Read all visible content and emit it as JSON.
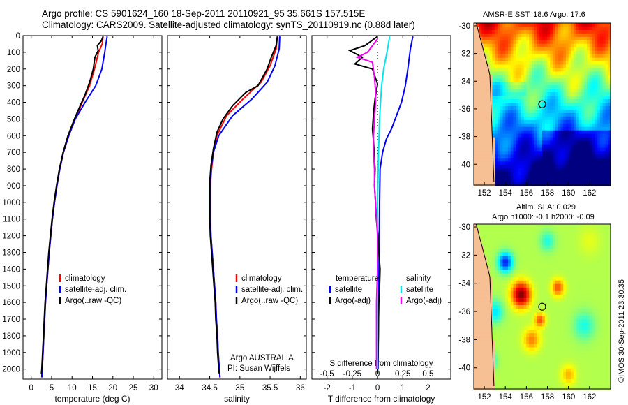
{
  "header": {
    "line1": "Argo profile: CS 5901624_160 18-Sep-2011 20110921_95 35.661S 157.515E",
    "line2": "Climatology: CARS2009. Satellite-adjusted climatology: synTS_20110919.nc (0.88d later)"
  },
  "colors": {
    "climatology": "#ff0000",
    "satellite": "#0000ff",
    "argo": "#000000",
    "salinity_sat": "#00e5ee",
    "salinity_argo": "#ee00ee",
    "land": "#f7bf94"
  },
  "chart_data": [
    {
      "type": "line",
      "xlabel": "temperature (deg C)",
      "xticks": [
        "0",
        "5",
        "10",
        "15",
        "20",
        "25",
        "30"
      ],
      "xlim": [
        -2,
        32
      ],
      "ylim": [
        0,
        2060
      ],
      "yticks": [
        "0",
        "100",
        "200",
        "300",
        "400",
        "500",
        "600",
        "700",
        "800",
        "900",
        "1000",
        "1100",
        "1200",
        "1300",
        "1400",
        "1500",
        "1600",
        "1700",
        "1800",
        "1900",
        "2000"
      ],
      "legend": [
        "climatology",
        "satellite-adj. clim.",
        "Argo(..raw -QC)"
      ],
      "series": [
        {
          "name": "climatology",
          "color": "#ff0000",
          "points": [
            [
              17.6,
              5
            ],
            [
              17.4,
              50
            ],
            [
              16.5,
              100
            ],
            [
              15.5,
              200
            ],
            [
              14.3,
              300
            ],
            [
              12.5,
              400
            ],
            [
              10.8,
              500
            ],
            [
              9.2,
              600
            ],
            [
              7.9,
              700
            ],
            [
              7,
              800
            ],
            [
              6.3,
              900
            ],
            [
              5.7,
              1000
            ],
            [
              5.2,
              1100
            ],
            [
              4.8,
              1200
            ],
            [
              4.4,
              1300
            ],
            [
              4.1,
              1400
            ],
            [
              3.8,
              1500
            ],
            [
              3.5,
              1600
            ],
            [
              3.3,
              1700
            ],
            [
              3.1,
              1800
            ],
            [
              2.9,
              1900
            ],
            [
              2.7,
              2000
            ],
            [
              2.6,
              2050
            ]
          ]
        },
        {
          "name": "satellite-adj. clim.",
          "color": "#0000ff",
          "points": [
            [
              18.6,
              5
            ],
            [
              18.3,
              50
            ],
            [
              18,
              100
            ],
            [
              17.3,
              200
            ],
            [
              15.8,
              300
            ],
            [
              13.2,
              400
            ],
            [
              10.8,
              500
            ],
            [
              9.2,
              600
            ],
            [
              7.9,
              700
            ],
            [
              7,
              800
            ],
            [
              6.3,
              900
            ],
            [
              5.7,
              1000
            ],
            [
              5.2,
              1100
            ],
            [
              4.8,
              1200
            ],
            [
              4.4,
              1300
            ],
            [
              4.1,
              1400
            ],
            [
              3.8,
              1500
            ],
            [
              3.5,
              1600
            ],
            [
              3.3,
              1700
            ],
            [
              3.1,
              1800
            ],
            [
              2.9,
              1900
            ],
            [
              2.7,
              2000
            ],
            [
              2.6,
              2050
            ]
          ]
        },
        {
          "name": "Argo(..raw -QC)",
          "color": "#000000",
          "points": [
            [
              17.6,
              5
            ],
            [
              17.2,
              30
            ],
            [
              16.2,
              60
            ],
            [
              16.4,
              90
            ],
            [
              15.6,
              130
            ],
            [
              15.2,
              200
            ],
            [
              14.3,
              280
            ],
            [
              13.1,
              360
            ],
            [
              12,
              420
            ],
            [
              10.6,
              500
            ],
            [
              9,
              600
            ],
            [
              7.8,
              700
            ],
            [
              6.9,
              800
            ],
            [
              6.2,
              900
            ],
            [
              5.6,
              1000
            ],
            [
              5.1,
              1100
            ],
            [
              4.7,
              1200
            ],
            [
              4.3,
              1300
            ],
            [
              4,
              1400
            ],
            [
              3.7,
              1500
            ],
            [
              3.4,
              1600
            ],
            [
              3.2,
              1700
            ],
            [
              3,
              1800
            ],
            [
              2.8,
              1900
            ],
            [
              2.6,
              2000
            ],
            [
              2.5,
              2030
            ]
          ]
        }
      ]
    },
    {
      "type": "line",
      "xlabel": "salinity",
      "xticks": [
        "34",
        "34.5",
        "35",
        "35.5",
        "36"
      ],
      "xlim": [
        33.8,
        36.1
      ],
      "ylim": [
        0,
        2060
      ],
      "legend": [
        "climatology",
        "satellite-adj. clim.",
        "Argo(..raw -QC)"
      ],
      "annotations": [
        "Argo AUSTRALIA",
        "PI: Susan Wijffels"
      ],
      "series": [
        {
          "name": "climatology",
          "color": "#ff0000",
          "points": [
            [
              35.62,
              5
            ],
            [
              35.6,
              80
            ],
            [
              35.5,
              180
            ],
            [
              35.35,
              280
            ],
            [
              35.05,
              380
            ],
            [
              34.78,
              480
            ],
            [
              34.62,
              600
            ],
            [
              34.56,
              700
            ],
            [
              34.53,
              800
            ],
            [
              34.51,
              900
            ],
            [
              34.51,
              1000
            ],
            [
              34.51,
              1100
            ],
            [
              34.52,
              1200
            ],
            [
              34.54,
              1300
            ],
            [
              34.56,
              1400
            ],
            [
              34.58,
              1500
            ],
            [
              34.6,
              1600
            ],
            [
              34.61,
              1700
            ],
            [
              34.63,
              1800
            ],
            [
              34.64,
              1900
            ],
            [
              34.66,
              2000
            ],
            [
              34.67,
              2050
            ]
          ]
        },
        {
          "name": "satellite-adj. clim.",
          "color": "#0000ff",
          "points": [
            [
              35.66,
              5
            ],
            [
              35.65,
              80
            ],
            [
              35.58,
              180
            ],
            [
              35.45,
              280
            ],
            [
              35.2,
              380
            ],
            [
              34.88,
              480
            ],
            [
              34.65,
              600
            ],
            [
              34.56,
              700
            ],
            [
              34.52,
              800
            ],
            [
              34.51,
              900
            ],
            [
              34.51,
              1000
            ],
            [
              34.51,
              1100
            ],
            [
              34.52,
              1200
            ],
            [
              34.54,
              1300
            ],
            [
              34.56,
              1400
            ],
            [
              34.58,
              1500
            ],
            [
              34.6,
              1600
            ],
            [
              34.61,
              1700
            ],
            [
              34.63,
              1800
            ],
            [
              34.64,
              1900
            ],
            [
              34.66,
              2000
            ],
            [
              34.67,
              2050
            ]
          ]
        },
        {
          "name": "Argo(..raw -QC)",
          "color": "#000000",
          "points": [
            [
              35.62,
              5
            ],
            [
              35.6,
              60
            ],
            [
              35.52,
              130
            ],
            [
              35.45,
              200
            ],
            [
              35.3,
              300
            ],
            [
              35.1,
              340
            ],
            [
              34.88,
              420
            ],
            [
              34.72,
              500
            ],
            [
              34.62,
              580
            ],
            [
              34.56,
              680
            ],
            [
              34.52,
              780
            ],
            [
              34.5,
              880
            ],
            [
              34.5,
              980
            ],
            [
              34.5,
              1100
            ],
            [
              34.51,
              1200
            ],
            [
              34.53,
              1300
            ],
            [
              34.55,
              1400
            ],
            [
              34.57,
              1500
            ],
            [
              34.59,
              1600
            ],
            [
              34.6,
              1700
            ],
            [
              34.62,
              1800
            ],
            [
              34.63,
              1900
            ],
            [
              34.65,
              2000
            ],
            [
              34.66,
              2030
            ]
          ]
        }
      ]
    },
    {
      "type": "line",
      "title_bottom": "S difference from climatology",
      "xlabel": "T difference from climatology",
      "xticks_top": [
        "-0.5",
        "-0.25",
        "0",
        "0.25",
        "0.5"
      ],
      "xticks": [
        "-2",
        "-1",
        "0",
        "1",
        "2"
      ],
      "xlim_T": [
        -2.6,
        2.9
      ],
      "ylim": [
        0,
        2060
      ],
      "legend": {
        "temperature": [
          "satellite",
          "Argo(-adj)"
        ],
        "salinity": [
          "satellite",
          "Argo(-adj)"
        ],
        "temperature_title": "temperature",
        "salinity_title": "salinity"
      },
      "series": [
        {
          "name": "T satellite",
          "color": "#0000ff",
          "units": "T",
          "points": [
            [
              1.4,
              5
            ],
            [
              1.3,
              80
            ],
            [
              1.2,
              200
            ],
            [
              1.1,
              300
            ],
            [
              0.95,
              400
            ],
            [
              0.75,
              480
            ],
            [
              0.55,
              560
            ],
            [
              0.35,
              620
            ],
            [
              0.2,
              700
            ],
            [
              0.1,
              800
            ],
            [
              0.08,
              1000
            ],
            [
              0.05,
              1500
            ],
            [
              0.02,
              2000
            ]
          ]
        },
        {
          "name": "T Argo(-adj)",
          "color": "#000000",
          "units": "T",
          "points": [
            [
              0,
              5
            ],
            [
              -0.5,
              60
            ],
            [
              -1.1,
              90
            ],
            [
              -0.6,
              130
            ],
            [
              -0.9,
              170
            ],
            [
              -0.2,
              200
            ],
            [
              0,
              290
            ],
            [
              -0.1,
              380
            ],
            [
              -0.15,
              450
            ],
            [
              -0.2,
              560
            ],
            [
              -0.15,
              650
            ],
            [
              -0.1,
              800
            ],
            [
              -0.12,
              900
            ],
            [
              -0.08,
              1000
            ],
            [
              -0.05,
              1100
            ],
            [
              0.02,
              1200
            ],
            [
              0.05,
              1300
            ],
            [
              0.1,
              1400
            ],
            [
              0.08,
              1500
            ],
            [
              0.05,
              1600
            ],
            [
              0.04,
              1700
            ],
            [
              0.03,
              1800
            ],
            [
              0.02,
              1900
            ],
            [
              0.0,
              2030
            ]
          ]
        },
        {
          "name": "S satellite",
          "color": "#00e5ee",
          "units": "S",
          "points": [
            [
              0.12,
              5
            ],
            [
              0.1,
              80
            ],
            [
              0.06,
              200
            ],
            [
              0.04,
              300
            ],
            [
              0.03,
              400
            ],
            [
              0.02,
              500
            ],
            [
              0.01,
              700
            ],
            [
              0.0,
              1000
            ],
            [
              0.0,
              1500
            ],
            [
              0.0,
              2000
            ]
          ]
        },
        {
          "name": "S Argo(-adj)",
          "color": "#ee00ee",
          "units": "S",
          "points": [
            [
              0,
              20
            ],
            [
              -0.1,
              100
            ],
            [
              -0.2,
              130
            ],
            [
              -0.05,
              160
            ],
            [
              -0.03,
              250
            ],
            [
              -0.02,
              330
            ],
            [
              -0.02,
              400
            ],
            [
              -0.03,
              500
            ],
            [
              -0.04,
              600
            ],
            [
              -0.04,
              700
            ],
            [
              -0.03,
              800
            ],
            [
              -0.03,
              900
            ],
            [
              -0.02,
              1000
            ],
            [
              -0.01,
              1100
            ],
            [
              0.0,
              1200
            ],
            [
              0.0,
              1400
            ],
            [
              -0.01,
              1600
            ],
            [
              -0.01,
              1800
            ],
            [
              -0.01,
              2000
            ]
          ]
        }
      ]
    },
    {
      "type": "heatmap",
      "title": "AMSR-E SST: 18.6 Argo: 17.6",
      "xticks": [
        "152",
        "154",
        "156",
        "158",
        "160",
        "162"
      ],
      "yticks": [
        "-30",
        "-32",
        "-34",
        "-36",
        "-38",
        "-40"
      ],
      "xlim": [
        151,
        164
      ],
      "ylim": [
        -41.5,
        -29.8
      ],
      "marker": [
        157.5,
        -35.66
      ]
    },
    {
      "type": "heatmap",
      "title": "Altim. SLA: 0.029",
      "subtitle": "Argo h1000: -0.1 h2000: -0.09",
      "xticks": [
        "152",
        "154",
        "156",
        "158",
        "160",
        "162"
      ],
      "yticks": [
        "-30",
        "-32",
        "-34",
        "-36",
        "-38",
        "-40"
      ],
      "xlim": [
        151,
        164
      ],
      "ylim": [
        -41.5,
        -29.8
      ],
      "marker": [
        157.5,
        -35.66
      ]
    }
  ],
  "footer": {
    "stamp": "©IMOS 30-Sep-2011 23:30:35"
  }
}
